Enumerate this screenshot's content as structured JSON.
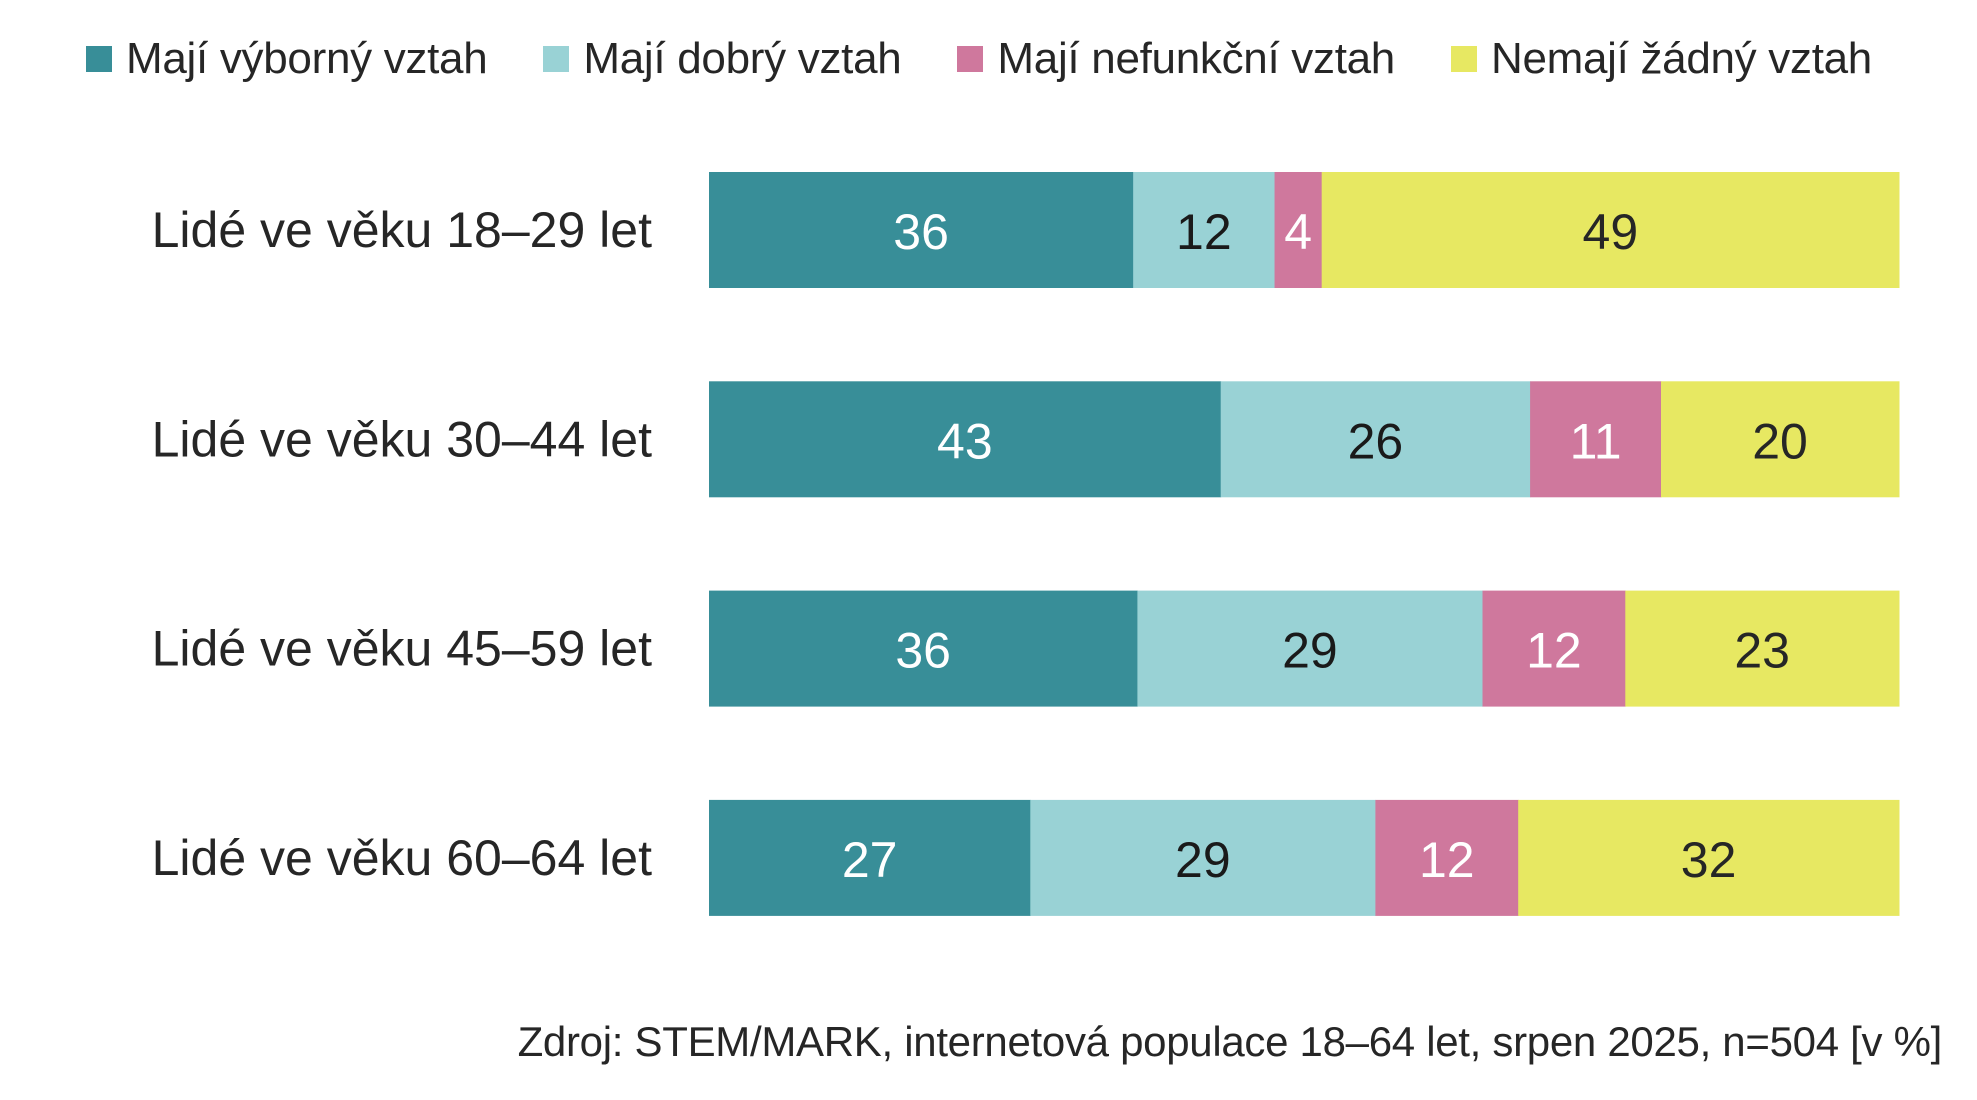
{
  "chart_data": {
    "type": "bar",
    "orientation": "horizontal",
    "stacked": true,
    "title": "",
    "xlabel": "",
    "ylabel": "",
    "xlim": [
      0,
      100
    ],
    "grid": false,
    "legend_position": "top",
    "categories": [
      "Lidé ve věku 18–29 let",
      "Lidé ve věku 30–44 let",
      "Lidé ve věku 45–59 let",
      "Lidé ve věku 60–64 let"
    ],
    "series": [
      {
        "name": "Mají výborný vztah",
        "color": "#388e98",
        "label_color": "#ffffff",
        "values": [
          36,
          43,
          36,
          27
        ]
      },
      {
        "name": "Mají dobrý vztah",
        "color": "#99d2d5",
        "label_color": "#1a1a1a",
        "values": [
          12,
          26,
          29,
          29
        ]
      },
      {
        "name": "Mají nefunkční vztah",
        "color": "#cf789d",
        "label_color": "#ffffff",
        "values": [
          4,
          11,
          12,
          12
        ]
      },
      {
        "name": "Nemají žádný vztah",
        "color": "#e7e862",
        "label_color": "#262626",
        "values": [
          49,
          20,
          23,
          32
        ]
      }
    ],
    "source": "Zdroj: STEM/MARK, internetová populace 18–64 let, srpen 2025, n=504 [v %]"
  }
}
